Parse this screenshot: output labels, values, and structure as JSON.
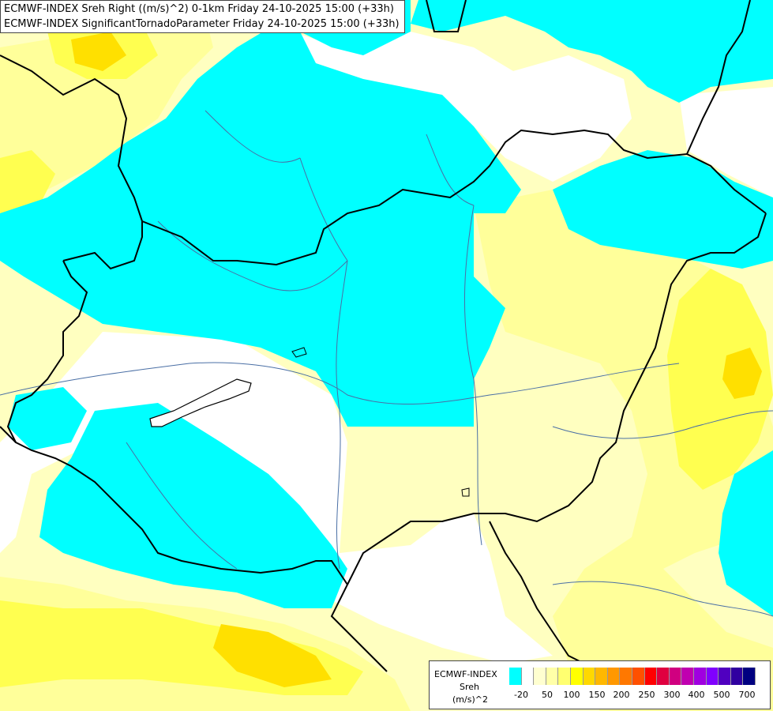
{
  "title": {
    "line1": "ECMWF-INDEX Sreh Right ((m/s)^2) 0-1km Friday 24-10-2025 15:00 (+33h)",
    "line2": "ECMWF-INDEX SignificantTornadoParameter Friday 24-10-2025 15:00 (+33h)"
  },
  "legend": {
    "brand": "ECMWF-INDEX",
    "variable": "Sreh",
    "unit": "(m/s)^2",
    "colors": [
      "#00ffff",
      "#ffffff",
      "#ffffd0",
      "#ffffa8",
      "#ffff70",
      "#ffff00",
      "#ffd800",
      "#ffb800",
      "#ff9800",
      "#ff7800",
      "#ff5000",
      "#ff0000",
      "#e00040",
      "#d00080",
      "#c000b0",
      "#a000e0",
      "#8000ff",
      "#5000c0",
      "#3000a0",
      "#000080"
    ],
    "ticks": [
      "-20",
      "50",
      "100",
      "150",
      "200",
      "250",
      "300",
      "400",
      "500",
      "700"
    ]
  },
  "colors": {
    "cyan": "#00ffff",
    "pale_yellow": "#ffffc0",
    "light_yellow": "#ffff9a",
    "yellow": "#ffff50",
    "gold": "#ffe000",
    "white": "#ffffff",
    "border": "#000000",
    "river": "#4a6fa5"
  }
}
